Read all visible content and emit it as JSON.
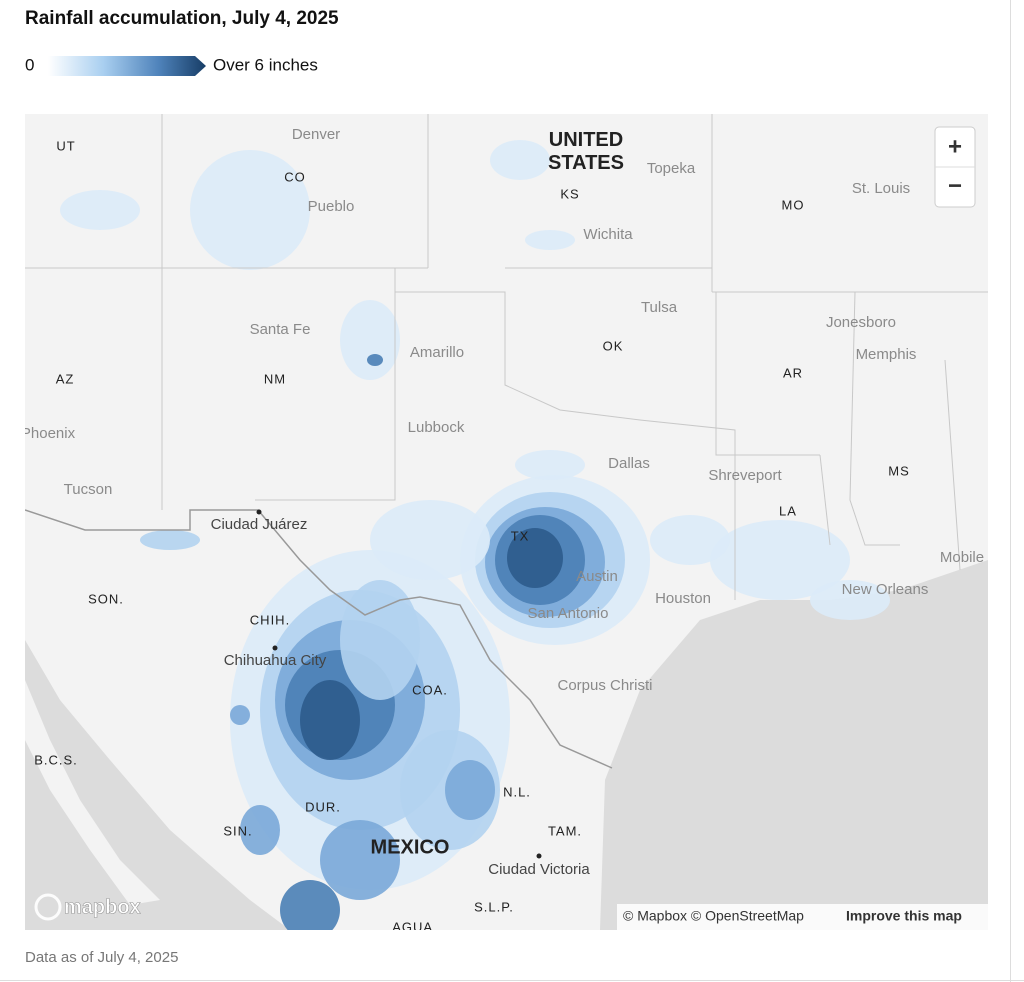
{
  "header": {
    "title": "Rainfall accumulation, July 4, 2025"
  },
  "legend": {
    "min_label": "0",
    "max_label": "Over 6 inches"
  },
  "map": {
    "labels": [
      "UT",
      "Denver",
      "CO",
      "Pueblo",
      "UNITED STATES",
      "Topeka",
      "KS",
      "Wichita",
      "MO",
      "St. Louis",
      "Santa Fe",
      "Amarillo",
      "Tulsa",
      "OK",
      "Jonesboro",
      "Memphis",
      "AZ",
      "NM",
      "AR",
      "Phoenix",
      "Lubbock",
      "Dallas",
      "Shreveport",
      "MS",
      "Tucson",
      "LA",
      "Ciudad Juárez",
      "TX",
      "Austin",
      "Mobile",
      "SON.",
      "Houston",
      "New Orleans",
      "San Antonio",
      "CHIH.",
      "Chihuahua City",
      "COA.",
      "Corpus Christi",
      "B.C.S.",
      "N.L.",
      "DUR.",
      "SIN.",
      "TAM.",
      "MEXICO",
      "Ciudad Victoria",
      "S.L.P.",
      "AGUA."
    ],
    "zoom_in": "+",
    "zoom_out": "−",
    "logo": "mapbox",
    "attribution": "© Mapbox © OpenStreetMap",
    "improve_link": "Improve this map"
  },
  "footer": {
    "note": "Data as of July 4, 2025"
  }
}
